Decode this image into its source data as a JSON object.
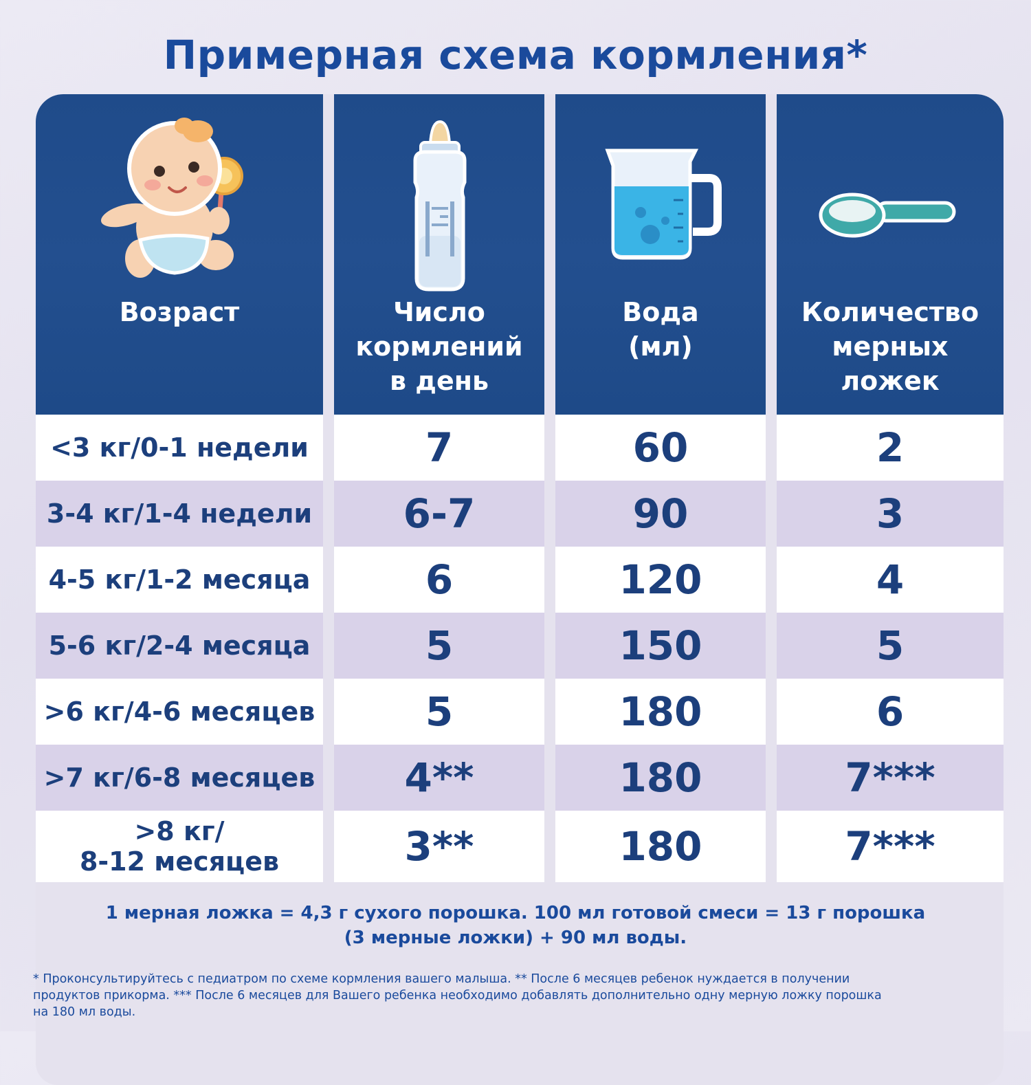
{
  "title": "Примерная схема кормления*",
  "header": {
    "col_age": "Возраст",
    "col_feedings": "Число\nкормлений\nв день",
    "col_water": "Вода\n(мл)",
    "col_spoons": "Количество\nмерных\nложек"
  },
  "icons": {
    "age": "baby-icon",
    "feedings": "baby-bottle-icon",
    "water": "measuring-jug-icon",
    "spoons": "measuring-spoon-icon"
  },
  "rows": [
    {
      "age": "<3 кг/0-1 недели",
      "feedings": "7",
      "water": "60",
      "spoons": "2"
    },
    {
      "age": "3-4 кг/1-4 недели",
      "feedings": "6-7",
      "water": "90",
      "spoons": "3"
    },
    {
      "age": "4-5 кг/1-2 месяца",
      "feedings": "6",
      "water": "120",
      "spoons": "4"
    },
    {
      "age": "5-6 кг/2-4 месяца",
      "feedings": "5",
      "water": "150",
      "spoons": "5"
    },
    {
      "age": ">6 кг/4-6 месяцев",
      "feedings": "5",
      "water": "180",
      "spoons": "6"
    },
    {
      "age": ">7 кг/6-8 месяцев",
      "feedings": "4**",
      "water": "180",
      "spoons": "7***"
    },
    {
      "age": ">8 кг/\n8-12 месяцев",
      "feedings": "3**",
      "water": "180",
      "spoons": "7***"
    }
  ],
  "note": "1 мерная ложка = 4,3 г сухого порошка. 100 мл готовой смеси = 13 г порошка\n(3 мерные ложки) + 90 мл воды.",
  "footnote": "* Проконсультируйтесь с педиатром по схеме кормления вашего малыша. ** После 6 месяцев ребенок нуждается в получении\nпродуктов прикорма. *** После 6 месяцев для Вашего ребенка необходимо добавлять дополнительно одну мерную ложку порошка\nна 180 мл воды.",
  "colors": {
    "header_bg": "#1f4b8a",
    "text_blue": "#1a4a9c",
    "row_tint": "#d9d2e9",
    "water": "#3ab4e6",
    "spoon": "#3fa9a8"
  }
}
